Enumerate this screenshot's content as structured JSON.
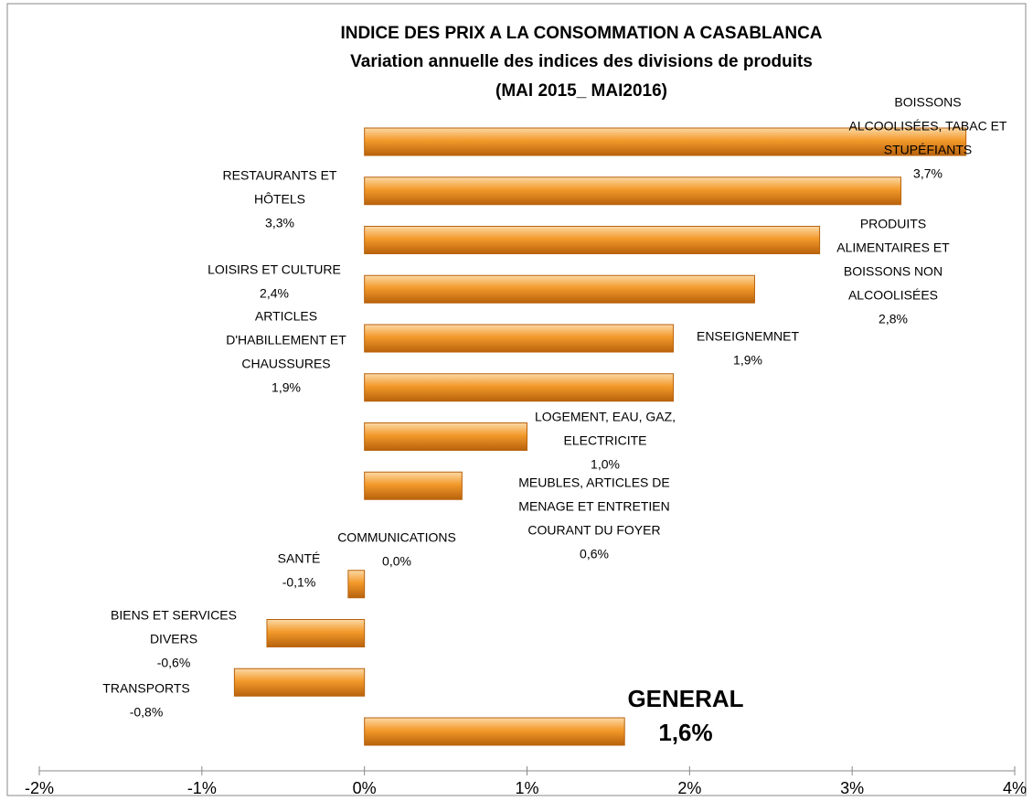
{
  "chart_data": {
    "type": "bar",
    "orientation": "horizontal",
    "title": [
      "INDICE DES PRIX A LA CONSOMMATION A CASABLANCA",
      "Variation annuelle des indices des divisions de produits",
      "(MAl 2015_ MAI2016)"
    ],
    "categories": [
      [
        "BOISSONS",
        "ALCOOLISÉES, TABAC ET",
        "STUPÉFIANTS"
      ],
      [
        "RESTAURANTS ET",
        "HÔTELS"
      ],
      [
        "PRODUITS",
        "ALIMENTAIRES ET",
        "BOISSONS NON",
        "ALCOOLISÉES"
      ],
      [
        "LOISIRS ET CULTURE"
      ],
      [
        "ENSEIGNEMNET"
      ],
      [
        "ARTICLES",
        "D'HABILLEMENT ET",
        "CHAUSSURES"
      ],
      [
        "LOGEMENT, EAU, GAZ,",
        "ELECTRICITE"
      ],
      [
        "MEUBLES, ARTICLES DE",
        "MENAGE ET ENTRETIEN",
        "COURANT DU FOYER"
      ],
      [
        "COMMUNICATIONS"
      ],
      [
        "SANTÉ"
      ],
      [
        "BIENS ET SERVICES",
        "DIVERS"
      ],
      [
        "TRANSPORTS"
      ],
      [
        "GENERAL"
      ]
    ],
    "values": [
      3.7,
      3.3,
      2.8,
      2.4,
      1.9,
      1.9,
      1.0,
      0.6,
      0.0,
      -0.1,
      -0.6,
      -0.8,
      1.6
    ],
    "value_labels": [
      "3,7%",
      "3,3%",
      "2,8%",
      "2,4%",
      "1,9%",
      "1,9%",
      "1,0%",
      "0,6%",
      "0,0%",
      "-0,1%",
      "-0,6%",
      "-0,8%",
      "1,6%"
    ],
    "color": "#f39a2b",
    "xlim": [
      -2,
      4
    ],
    "xticks": [
      {
        "value": -2,
        "label": "-2%"
      },
      {
        "value": -1,
        "label": "-1%"
      },
      {
        "value": 0,
        "label": "0%"
      },
      {
        "value": 1,
        "label": "1%"
      },
      {
        "value": 2,
        "label": "2%"
      },
      {
        "value": 3,
        "label": "3%"
      },
      {
        "value": 4,
        "label": "4%"
      }
    ],
    "grid": false
  }
}
